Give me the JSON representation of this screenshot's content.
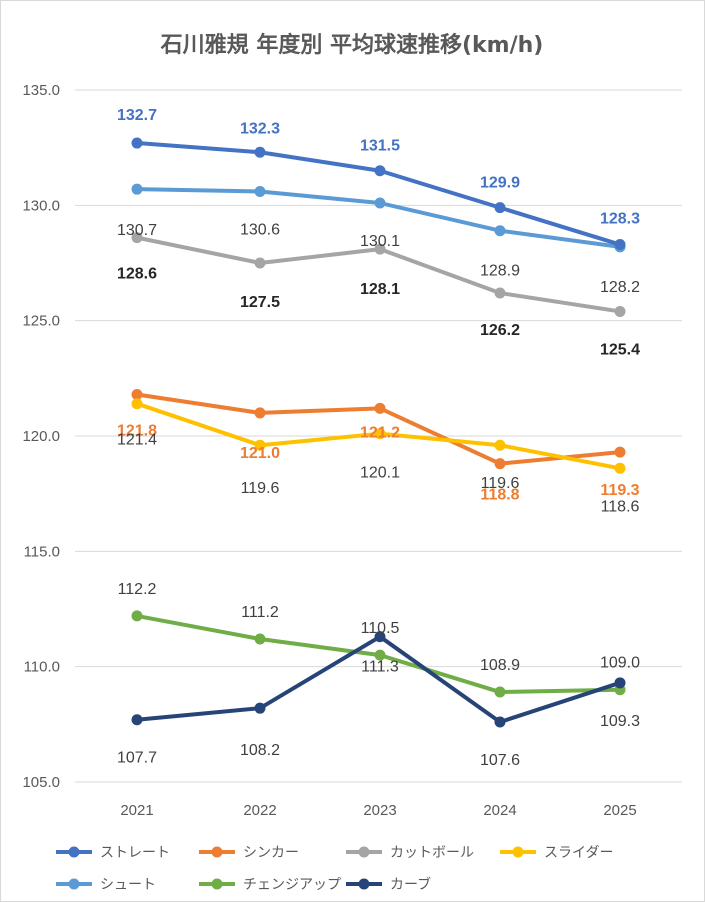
{
  "chart_data": {
    "type": "line",
    "title": "石川雅規 年度別 平均球速推移(km/h)",
    "xlabel": "",
    "ylabel": "",
    "categories": [
      "2021",
      "2022",
      "2023",
      "2024",
      "2025"
    ],
    "ylim": [
      105,
      135
    ],
    "yticks": [
      "105.0",
      "110.0",
      "115.0",
      "120.0",
      "125.0",
      "130.0",
      "135.0"
    ],
    "grid": true,
    "legend_position": "bottom",
    "series": [
      {
        "name": "ストレート",
        "color": "#4472c4",
        "values": [
          132.7,
          132.3,
          131.5,
          129.9,
          128.3
        ],
        "labels": [
          "132.7",
          "132.3",
          "131.5",
          "129.9",
          "128.3"
        ],
        "label_color": "#4472c4",
        "label_weight": "bold"
      },
      {
        "name": "シンカー",
        "color": "#ed7d31",
        "values": [
          121.8,
          121.0,
          121.2,
          118.8,
          119.3
        ],
        "labels": [
          "121.8",
          "121.0",
          "121.2",
          "118.8",
          "119.3"
        ],
        "label_color": "#ed7d31",
        "label_weight": "bold"
      },
      {
        "name": "カットボール",
        "color": "#a5a5a5",
        "values": [
          128.6,
          127.5,
          128.1,
          126.2,
          125.4
        ],
        "labels": [
          "128.6",
          "127.5",
          "128.1",
          "126.2",
          "125.4"
        ],
        "label_color": "#262626",
        "label_weight": "bold"
      },
      {
        "name": "スライダー",
        "color": "#ffc000",
        "values": [
          121.4,
          119.6,
          120.1,
          119.6,
          118.6
        ],
        "labels": [
          "121.4",
          "119.6",
          "120.1",
          "119.6",
          "118.6"
        ],
        "label_color": "#404040",
        "label_weight": "normal"
      },
      {
        "name": "シュート",
        "color": "#5b9bd5",
        "values": [
          130.7,
          130.6,
          130.1,
          128.9,
          128.2
        ],
        "labels": [
          "130.7",
          "130.6",
          "130.1",
          "128.9",
          "128.2"
        ],
        "label_color": "#404040",
        "label_weight": "normal"
      },
      {
        "name": "チェンジアップ",
        "color": "#70ad47",
        "values": [
          112.2,
          111.2,
          110.5,
          108.9,
          109.0
        ],
        "labels": [
          "112.2",
          "111.2",
          "110.5",
          "108.9",
          "109.0"
        ],
        "label_color": "#404040",
        "label_weight": "normal"
      },
      {
        "name": "カーブ",
        "color": "#264478",
        "values": [
          107.7,
          108.2,
          111.3,
          107.6,
          109.3
        ],
        "labels": [
          "107.7",
          "108.2",
          "111.3",
          "107.6",
          "109.3"
        ],
        "label_color": "#404040",
        "label_weight": "normal"
      }
    ]
  }
}
